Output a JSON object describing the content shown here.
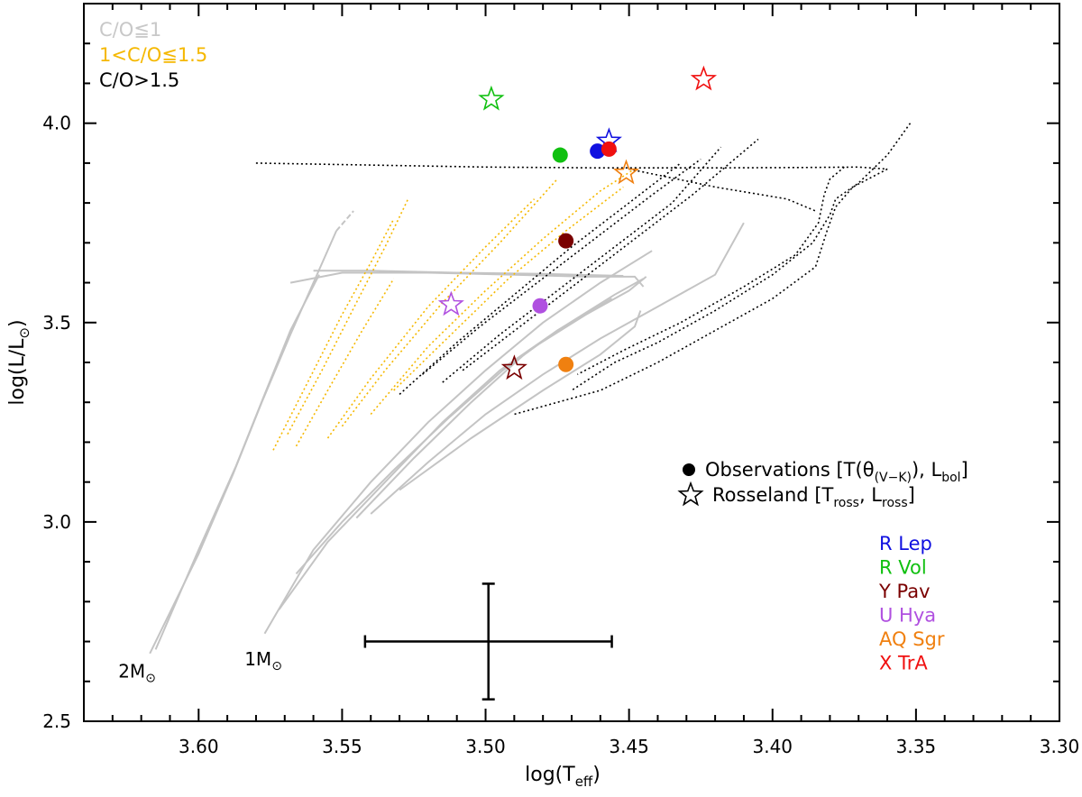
{
  "chart_data": {
    "type": "scatter",
    "xlabel": "log(T",
    "xlabel_sub": "eff",
    "xlabel_close": ")",
    "ylabel": "log(L/L",
    "ylabel_sub": "⊙",
    "ylabel_close": ")",
    "x_reversed": true,
    "xlim": [
      3.64,
      3.3
    ],
    "ylim": [
      2.5,
      4.3
    ],
    "x_ticks": [
      "3.60",
      "3.55",
      "3.50",
      "3.45",
      "3.40",
      "3.35",
      "3.30"
    ],
    "y_ticks": [
      "2.5",
      "3.0",
      "3.5",
      "4.0"
    ],
    "track_legend": [
      {
        "label": "C/O≦1",
        "color": "#c8c8c8"
      },
      {
        "label": "1<C/O≦1.5",
        "color": "#f5b800"
      },
      {
        "label": "C/O>1.5",
        "color": "#000000"
      }
    ],
    "symbol_legend": [
      {
        "symbol": "circle",
        "label": "Observations [T(θ",
        "sub": "(V−K)",
        "mid": "), L",
        "sub2": "bol",
        "end": "]"
      },
      {
        "symbol": "star",
        "label": "Rosseland [T",
        "sub": "ross",
        "mid": ", L",
        "sub2": "ross",
        "end": "]"
      }
    ],
    "stars": [
      {
        "name": "R  Lep",
        "color": "#1010e0",
        "obs": [
          3.461,
          3.93
        ],
        "ross": [
          3.457,
          3.955
        ]
      },
      {
        "name": "R  Vol",
        "color": "#10c010",
        "obs": [
          3.474,
          3.92
        ],
        "ross": [
          3.498,
          4.06
        ]
      },
      {
        "name": "Y  Pav",
        "color": "#7a0000",
        "obs": [
          3.472,
          3.705
        ],
        "ross": [
          3.49,
          3.385
        ]
      },
      {
        "name": "U  Hya",
        "color": "#b050e0",
        "obs": [
          3.481,
          3.542
        ],
        "ross": [
          3.512,
          3.545
        ]
      },
      {
        "name": "AQ  Sgr",
        "color": "#f08010",
        "obs": [
          3.472,
          3.395
        ],
        "ross": [
          3.451,
          3.875
        ]
      },
      {
        "name": "X  TrA",
        "color": "#f01010",
        "obs": [
          3.457,
          3.935
        ],
        "ross": [
          3.424,
          4.11
        ]
      }
    ],
    "error_bar": {
      "x": 3.499,
      "y": 2.7,
      "xerr": 0.043,
      "yerr": 0.145
    },
    "mass_labels": [
      {
        "text": "2M",
        "sub": "⊙",
        "x": 3.628,
        "y": 2.61
      },
      {
        "text": "1M",
        "sub": "⊙",
        "x": 3.584,
        "y": 2.64
      }
    ],
    "tracks": [
      {
        "group": "gray",
        "style": "solid",
        "points": [
          [
            3.617,
            2.67
          ],
          [
            3.6,
            2.92
          ],
          [
            3.588,
            3.12
          ],
          [
            3.578,
            3.3
          ],
          [
            3.568,
            3.47
          ],
          [
            3.56,
            3.6
          ],
          [
            3.552,
            3.73
          ]
        ]
      },
      {
        "group": "gray",
        "style": "solid",
        "points": [
          [
            3.615,
            2.68
          ],
          [
            3.6,
            2.93
          ],
          [
            3.587,
            3.14
          ],
          [
            3.577,
            3.32
          ],
          [
            3.568,
            3.48
          ],
          [
            3.558,
            3.62
          ]
        ]
      },
      {
        "group": "gray",
        "style": "dashed",
        "points": [
          [
            3.552,
            3.73
          ],
          [
            3.546,
            3.78
          ]
        ]
      },
      {
        "group": "gray",
        "style": "solid",
        "points": [
          [
            3.577,
            2.72
          ],
          [
            3.56,
            2.93
          ],
          [
            3.54,
            3.1
          ],
          [
            3.52,
            3.25
          ],
          [
            3.5,
            3.38
          ],
          [
            3.48,
            3.5
          ],
          [
            3.46,
            3.6
          ],
          [
            3.442,
            3.68
          ]
        ]
      },
      {
        "group": "gray",
        "style": "solid",
        "points": [
          [
            3.572,
            2.78
          ],
          [
            3.555,
            2.95
          ],
          [
            3.535,
            3.1
          ],
          [
            3.515,
            3.25
          ],
          [
            3.495,
            3.38
          ],
          [
            3.475,
            3.48
          ],
          [
            3.455,
            3.57
          ],
          [
            3.445,
            3.61
          ]
        ]
      },
      {
        "group": "gray",
        "style": "solid",
        "points": [
          [
            3.566,
            2.87
          ],
          [
            3.55,
            3.0
          ],
          [
            3.532,
            3.13
          ],
          [
            3.513,
            3.26
          ],
          [
            3.494,
            3.38
          ],
          [
            3.475,
            3.48
          ],
          [
            3.456,
            3.56
          ]
        ]
      },
      {
        "group": "gray",
        "style": "solid",
        "points": [
          [
            3.54,
            3.02
          ],
          [
            3.52,
            3.15
          ],
          [
            3.5,
            3.27
          ],
          [
            3.48,
            3.37
          ],
          [
            3.46,
            3.46
          ],
          [
            3.44,
            3.54
          ],
          [
            3.42,
            3.62
          ],
          [
            3.41,
            3.75
          ]
        ]
      },
      {
        "group": "gray",
        "style": "solid",
        "points": [
          [
            3.53,
            3.08
          ],
          [
            3.505,
            3.21
          ],
          [
            3.48,
            3.33
          ],
          [
            3.46,
            3.42
          ],
          [
            3.448,
            3.49
          ],
          [
            3.446,
            3.53
          ]
        ]
      },
      {
        "group": "gray",
        "style": "solid",
        "points": [
          [
            3.545,
            3.01
          ],
          [
            3.525,
            3.16
          ],
          [
            3.505,
            3.3
          ],
          [
            3.485,
            3.43
          ],
          [
            3.465,
            3.52
          ],
          [
            3.45,
            3.58
          ],
          [
            3.444,
            3.615
          ]
        ]
      },
      {
        "group": "gray",
        "style": "solid",
        "points": [
          [
            3.568,
            3.6
          ],
          [
            3.55,
            3.625
          ],
          [
            3.52,
            3.625
          ],
          [
            3.49,
            3.62
          ],
          [
            3.465,
            3.615
          ],
          [
            3.448,
            3.615
          ],
          [
            3.445,
            3.59
          ]
        ]
      },
      {
        "group": "gray",
        "style": "solid",
        "points": [
          [
            3.56,
            3.63
          ],
          [
            3.54,
            3.63
          ],
          [
            3.51,
            3.625
          ],
          [
            3.48,
            3.622
          ],
          [
            3.452,
            3.617
          ]
        ]
      },
      {
        "group": "orange",
        "style": "dotted",
        "points": [
          [
            3.574,
            3.18
          ],
          [
            3.562,
            3.35
          ],
          [
            3.55,
            3.52
          ],
          [
            3.54,
            3.65
          ],
          [
            3.532,
            3.76
          ]
        ]
      },
      {
        "group": "orange",
        "style": "dotted",
        "points": [
          [
            3.569,
            3.22
          ],
          [
            3.557,
            3.38
          ],
          [
            3.545,
            3.55
          ],
          [
            3.535,
            3.69
          ],
          [
            3.527,
            3.81
          ]
        ]
      },
      {
        "group": "orange",
        "style": "dotted",
        "points": [
          [
            3.566,
            3.19
          ],
          [
            3.555,
            3.33
          ],
          [
            3.543,
            3.48
          ],
          [
            3.532,
            3.61
          ]
        ]
      },
      {
        "group": "orange",
        "style": "dotted",
        "points": [
          [
            3.555,
            3.21
          ],
          [
            3.54,
            3.36
          ],
          [
            3.52,
            3.54
          ],
          [
            3.5,
            3.69
          ],
          [
            3.483,
            3.81
          ]
        ]
      },
      {
        "group": "orange",
        "style": "dotted",
        "points": [
          [
            3.55,
            3.24
          ],
          [
            3.535,
            3.38
          ],
          [
            3.515,
            3.55
          ],
          [
            3.495,
            3.7
          ],
          [
            3.475,
            3.86
          ]
        ]
      },
      {
        "group": "orange",
        "style": "dotted",
        "points": [
          [
            3.54,
            3.27
          ],
          [
            3.52,
            3.44
          ],
          [
            3.5,
            3.58
          ],
          [
            3.48,
            3.71
          ],
          [
            3.46,
            3.83
          ],
          [
            3.447,
            3.89
          ]
        ]
      },
      {
        "group": "orange",
        "style": "dotted",
        "points": [
          [
            3.532,
            3.33
          ],
          [
            3.512,
            3.47
          ],
          [
            3.492,
            3.61
          ],
          [
            3.472,
            3.73
          ],
          [
            3.452,
            3.84
          ]
        ]
      },
      {
        "group": "black",
        "style": "dotted",
        "points": [
          [
            3.53,
            3.32
          ],
          [
            3.51,
            3.45
          ],
          [
            3.49,
            3.57
          ],
          [
            3.47,
            3.69
          ],
          [
            3.45,
            3.8
          ],
          [
            3.432,
            3.9
          ]
        ]
      },
      {
        "group": "black",
        "style": "dotted",
        "points": [
          [
            3.522,
            3.37
          ],
          [
            3.502,
            3.49
          ],
          [
            3.482,
            3.6
          ],
          [
            3.462,
            3.71
          ],
          [
            3.442,
            3.82
          ],
          [
            3.425,
            3.91
          ]
        ]
      },
      {
        "group": "black",
        "style": "dotted",
        "points": [
          [
            3.515,
            3.35
          ],
          [
            3.495,
            3.47
          ],
          [
            3.475,
            3.58
          ],
          [
            3.455,
            3.69
          ],
          [
            3.435,
            3.8
          ],
          [
            3.418,
            3.94
          ]
        ]
      },
      {
        "group": "black",
        "style": "dotted",
        "points": [
          [
            3.508,
            3.38
          ],
          [
            3.488,
            3.49
          ],
          [
            3.468,
            3.6
          ],
          [
            3.448,
            3.71
          ],
          [
            3.428,
            3.82
          ],
          [
            3.405,
            3.96
          ]
        ]
      },
      {
        "group": "black",
        "style": "dotted",
        "points": [
          [
            3.58,
            3.9
          ],
          [
            3.54,
            3.895
          ],
          [
            3.5,
            3.89
          ],
          [
            3.46,
            3.888
          ],
          [
            3.42,
            3.888
          ],
          [
            3.39,
            3.889
          ],
          [
            3.37,
            3.89
          ],
          [
            3.36,
            3.885
          ]
        ]
      },
      {
        "group": "black",
        "style": "dotted",
        "points": [
          [
            3.36,
            3.885
          ],
          [
            3.372,
            3.84
          ],
          [
            3.378,
            3.79
          ],
          [
            3.381,
            3.73
          ],
          [
            3.385,
            3.64
          ],
          [
            3.4,
            3.56
          ],
          [
            3.42,
            3.48
          ],
          [
            3.44,
            3.4
          ],
          [
            3.46,
            3.33
          ],
          [
            3.49,
            3.27
          ]
        ]
      },
      {
        "group": "black",
        "style": "dotted",
        "points": [
          [
            3.352,
            4.0
          ],
          [
            3.36,
            3.92
          ],
          [
            3.37,
            3.85
          ],
          [
            3.378,
            3.81
          ],
          [
            3.38,
            3.77
          ],
          [
            3.386,
            3.7
          ],
          [
            3.4,
            3.62
          ],
          [
            3.42,
            3.53
          ],
          [
            3.44,
            3.45
          ],
          [
            3.455,
            3.4
          ],
          [
            3.47,
            3.33
          ]
        ]
      },
      {
        "group": "black",
        "style": "dotted",
        "points": [
          [
            3.375,
            3.89
          ],
          [
            3.38,
            3.86
          ],
          [
            3.382,
            3.82
          ],
          [
            3.384,
            3.75
          ],
          [
            3.392,
            3.67
          ],
          [
            3.41,
            3.59
          ],
          [
            3.432,
            3.5
          ],
          [
            3.452,
            3.43
          ],
          [
            3.468,
            3.37
          ]
        ]
      },
      {
        "group": "black",
        "style": "dotted",
        "points": [
          [
            3.45,
            3.885
          ],
          [
            3.42,
            3.84
          ],
          [
            3.395,
            3.81
          ],
          [
            3.385,
            3.78
          ]
        ]
      }
    ]
  }
}
